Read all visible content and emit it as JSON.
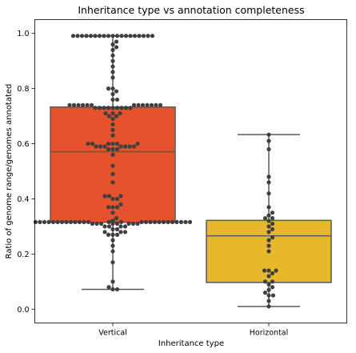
{
  "chart_data": {
    "type": "box",
    "title": "Inheritance type vs annotation completeness",
    "xlabel": "Inheritance type",
    "ylabel": "Ratio of genome range/genomes annotated",
    "categories": [
      "Vertical",
      "Horizontal"
    ],
    "ylim": [
      -0.05,
      1.05
    ],
    "yticks": [
      0.0,
      0.2,
      0.4,
      0.6,
      0.8,
      1.0
    ],
    "ytick_labels": [
      "0.0",
      "0.2",
      "0.4",
      "0.6",
      "0.8",
      "1.0"
    ],
    "box_colors": [
      "#e5532e",
      "#e8b82c"
    ],
    "edge_color": "#595959",
    "point_color": "#3f3f3f",
    "boxes": [
      {
        "category": "Vertical",
        "whislo": 0.072,
        "q1": 0.315,
        "med": 0.571,
        "q3": 0.733,
        "whishi": 0.991
      },
      {
        "category": "Horizontal",
        "whislo": 0.01,
        "q1": 0.097,
        "med": 0.266,
        "q3": 0.322,
        "whishi": 0.633
      }
    ],
    "points": [
      {
        "category": "Vertical",
        "values": [
          0.991,
          0.991,
          0.991,
          0.991,
          0.991,
          0.991,
          0.991,
          0.991,
          0.991,
          0.991,
          0.991,
          0.991,
          0.991,
          0.991,
          0.991,
          0.991,
          0.991,
          0.991,
          0.991,
          0.97,
          0.96,
          0.95,
          0.94,
          0.92,
          0.9,
          0.88,
          0.86,
          0.84,
          0.8,
          0.8,
          0.79,
          0.78,
          0.76,
          0.76,
          0.74,
          0.74,
          0.74,
          0.74,
          0.74,
          0.74,
          0.74,
          0.74,
          0.74,
          0.74,
          0.74,
          0.74,
          0.74,
          0.73,
          0.73,
          0.73,
          0.73,
          0.73,
          0.73,
          0.73,
          0.73,
          0.73,
          0.71,
          0.71,
          0.71,
          0.7,
          0.7,
          0.69,
          0.67,
          0.65,
          0.63,
          0.6,
          0.6,
          0.6,
          0.6,
          0.6,
          0.6,
          0.59,
          0.59,
          0.59,
          0.59,
          0.59,
          0.59,
          0.59,
          0.58,
          0.58,
          0.58,
          0.56,
          0.52,
          0.49,
          0.46,
          0.41,
          0.41,
          0.41,
          0.4,
          0.4,
          0.38,
          0.37,
          0.37,
          0.37,
          0.35,
          0.33,
          0.32,
          0.32,
          0.32,
          0.32,
          0.32,
          0.32,
          0.32,
          0.32,
          0.32,
          0.32,
          0.316,
          0.316,
          0.316,
          0.316,
          0.316,
          0.316,
          0.316,
          0.316,
          0.316,
          0.316,
          0.316,
          0.316,
          0.316,
          0.316,
          0.316,
          0.316,
          0.316,
          0.316,
          0.316,
          0.316,
          0.316,
          0.316,
          0.316,
          0.316,
          0.316,
          0.316,
          0.316,
          0.316,
          0.316,
          0.316,
          0.316,
          0.316,
          0.316,
          0.316,
          0.316,
          0.316,
          0.316,
          0.316,
          0.316,
          0.316,
          0.316,
          0.316,
          0.316,
          0.316,
          0.316,
          0.316,
          0.31,
          0.31,
          0.31,
          0.31,
          0.31,
          0.31,
          0.31,
          0.31,
          0.3,
          0.3,
          0.3,
          0.3,
          0.29,
          0.29,
          0.28,
          0.28,
          0.28,
          0.27,
          0.27,
          0.27,
          0.25,
          0.23,
          0.21,
          0.17,
          0.1,
          0.08,
          0.072,
          0.072
        ]
      },
      {
        "category": "Horizontal",
        "values": [
          0.633,
          0.61,
          0.58,
          0.48,
          0.46,
          0.42,
          0.37,
          0.35,
          0.34,
          0.33,
          0.33,
          0.32,
          0.31,
          0.3,
          0.29,
          0.28,
          0.26,
          0.25,
          0.23,
          0.21,
          0.14,
          0.14,
          0.14,
          0.13,
          0.12,
          0.1,
          0.1,
          0.09,
          0.08,
          0.07,
          0.06,
          0.05,
          0.05,
          0.03,
          0.01
        ]
      }
    ]
  }
}
